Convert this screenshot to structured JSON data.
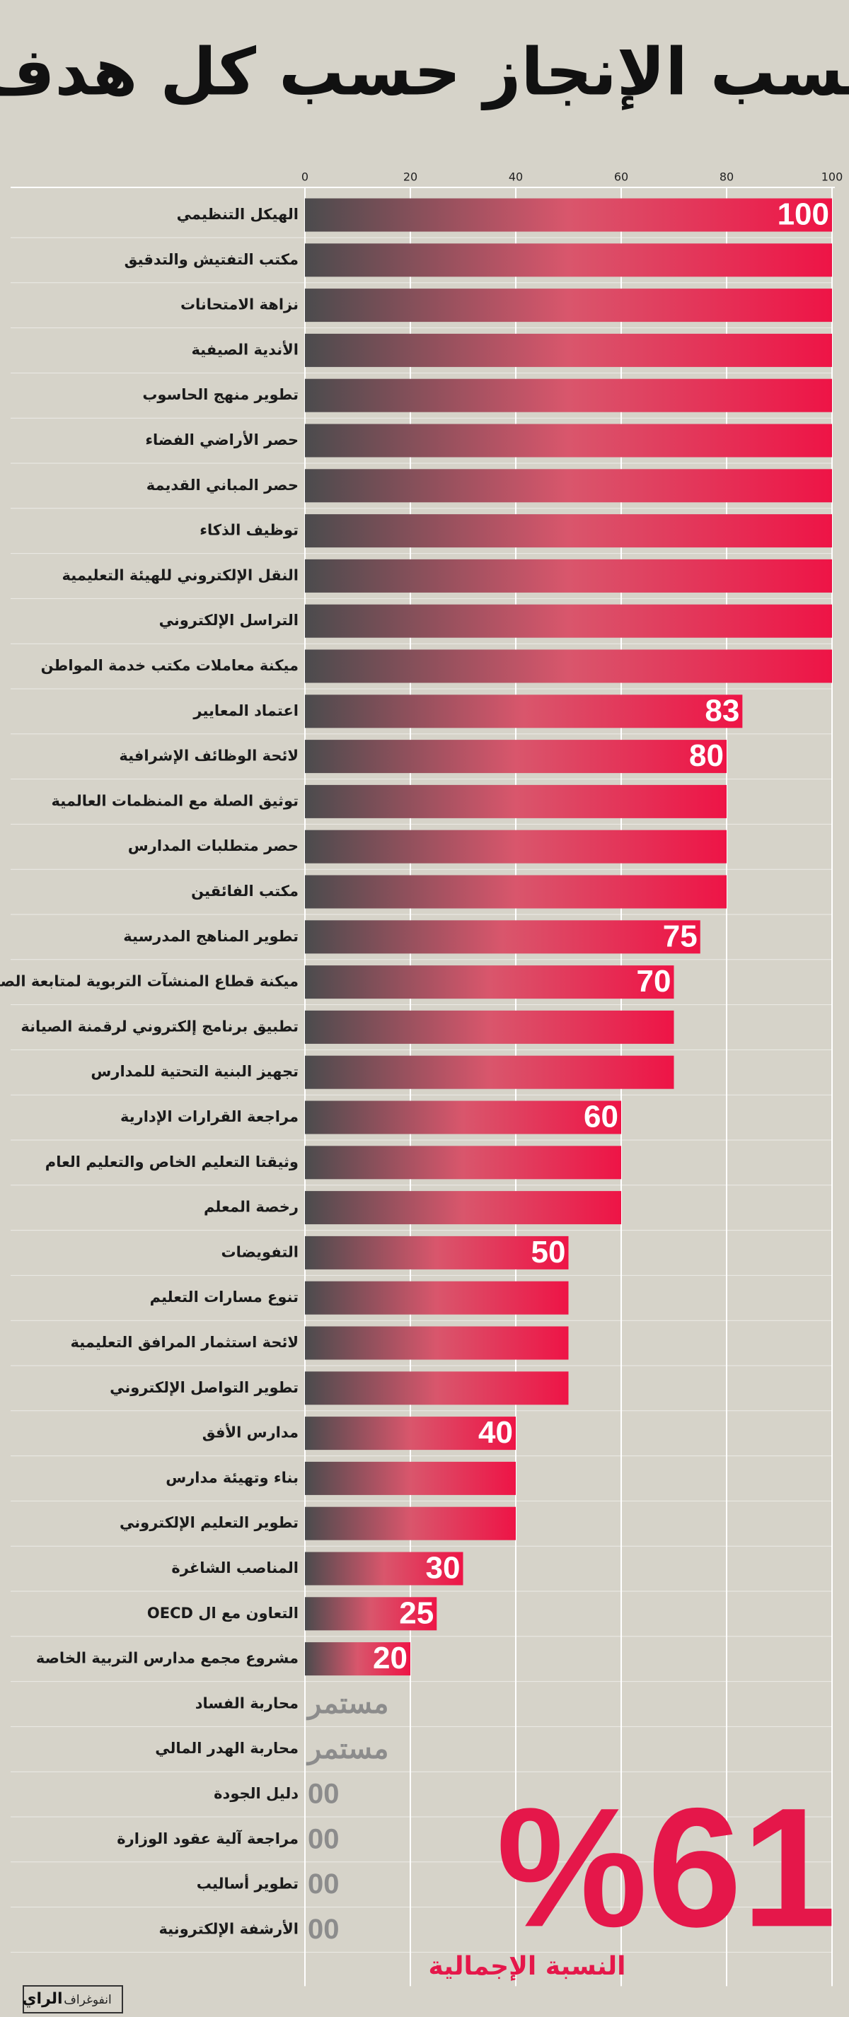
{
  "chart_data": {
    "type": "bar",
    "orientation": "horizontal",
    "title": "نسب الإنجاز حسب كل هدف",
    "categories": [
      "الهيكل التنظيمي",
      "مكتب التفتيش والتدقيق",
      "نزاهة الامتحانات",
      "الأندية الصيفية",
      "تطوير منهج الحاسوب",
      "حصر الأراضي الفضاء",
      "حصر المباني القديمة",
      "توظيف الذكاء",
      "النقل الإلكتروني للهيئة التعليمية",
      "التراسل الإلكتروني",
      "ميكنة معاملات مكتب خدمة المواطن",
      "اعتماد المعايير",
      "لائحة الوظائف الإشرافية",
      "توثيق الصلة مع المنظمات العالمية",
      "حصر متطلبات المدارس",
      "مكتب الفائقين",
      "تطوير المناهج المدرسية",
      "ميكنة قطاع المنشآت التربوية لمتابعة الصيانة",
      "تطبيق برنامج إلكتروني لرقمنة الصيانة",
      "تجهيز البنية التحتية للمدارس",
      "مراجعة القرارات الإدارية",
      "وثيقتا التعليم الخاص والتعليم العام",
      "رخصة المعلم",
      "التفويضات",
      "تنوع مسارات التعليم",
      "لائحة استثمار المرافق التعليمية",
      "تطوير التواصل الإلكتروني",
      "مدارس الأفق",
      "بناء وتهيئة مدارس",
      "تطوير التعليم الإلكتروني",
      "المناصب الشاغرة",
      "التعاون مع ال OECD",
      "مشروع مجمع مدارس التربية الخاصة",
      "محاربة الفساد",
      "محاربة الهدر المالي",
      "دليل الجودة",
      "مراجعة آلية عقود الوزارة",
      "تطوير أساليب",
      "الأرشفة الإلكترونية"
    ],
    "values": [
      100,
      100,
      100,
      100,
      100,
      100,
      100,
      100,
      100,
      100,
      100,
      83,
      80,
      80,
      80,
      80,
      75,
      70,
      70,
      70,
      60,
      60,
      60,
      50,
      50,
      50,
      50,
      40,
      40,
      40,
      30,
      25,
      20,
      null,
      null,
      0,
      0,
      0,
      0
    ],
    "value_labels": [
      "100",
      null,
      null,
      null,
      null,
      null,
      null,
      null,
      null,
      null,
      null,
      "83",
      "80",
      null,
      null,
      null,
      "75",
      "70",
      null,
      null,
      "60",
      null,
      null,
      "50",
      null,
      null,
      null,
      "40",
      null,
      null,
      "30",
      "25",
      "20",
      "مستمر",
      "مستمر",
      "00",
      "00",
      "00",
      "00"
    ],
    "gradient": [
      "#4b4b4d",
      "#d9566c",
      "#ee1446"
    ],
    "xlim": [
      0,
      100
    ],
    "xticks": [
      0,
      20,
      40,
      60,
      80,
      100
    ],
    "grid": true,
    "overall": {
      "value": 61,
      "label": "%61"
    },
    "overall_label": "النسبة الإجمالية",
    "credit": "انفوغراف",
    "logo": "الراي"
  }
}
